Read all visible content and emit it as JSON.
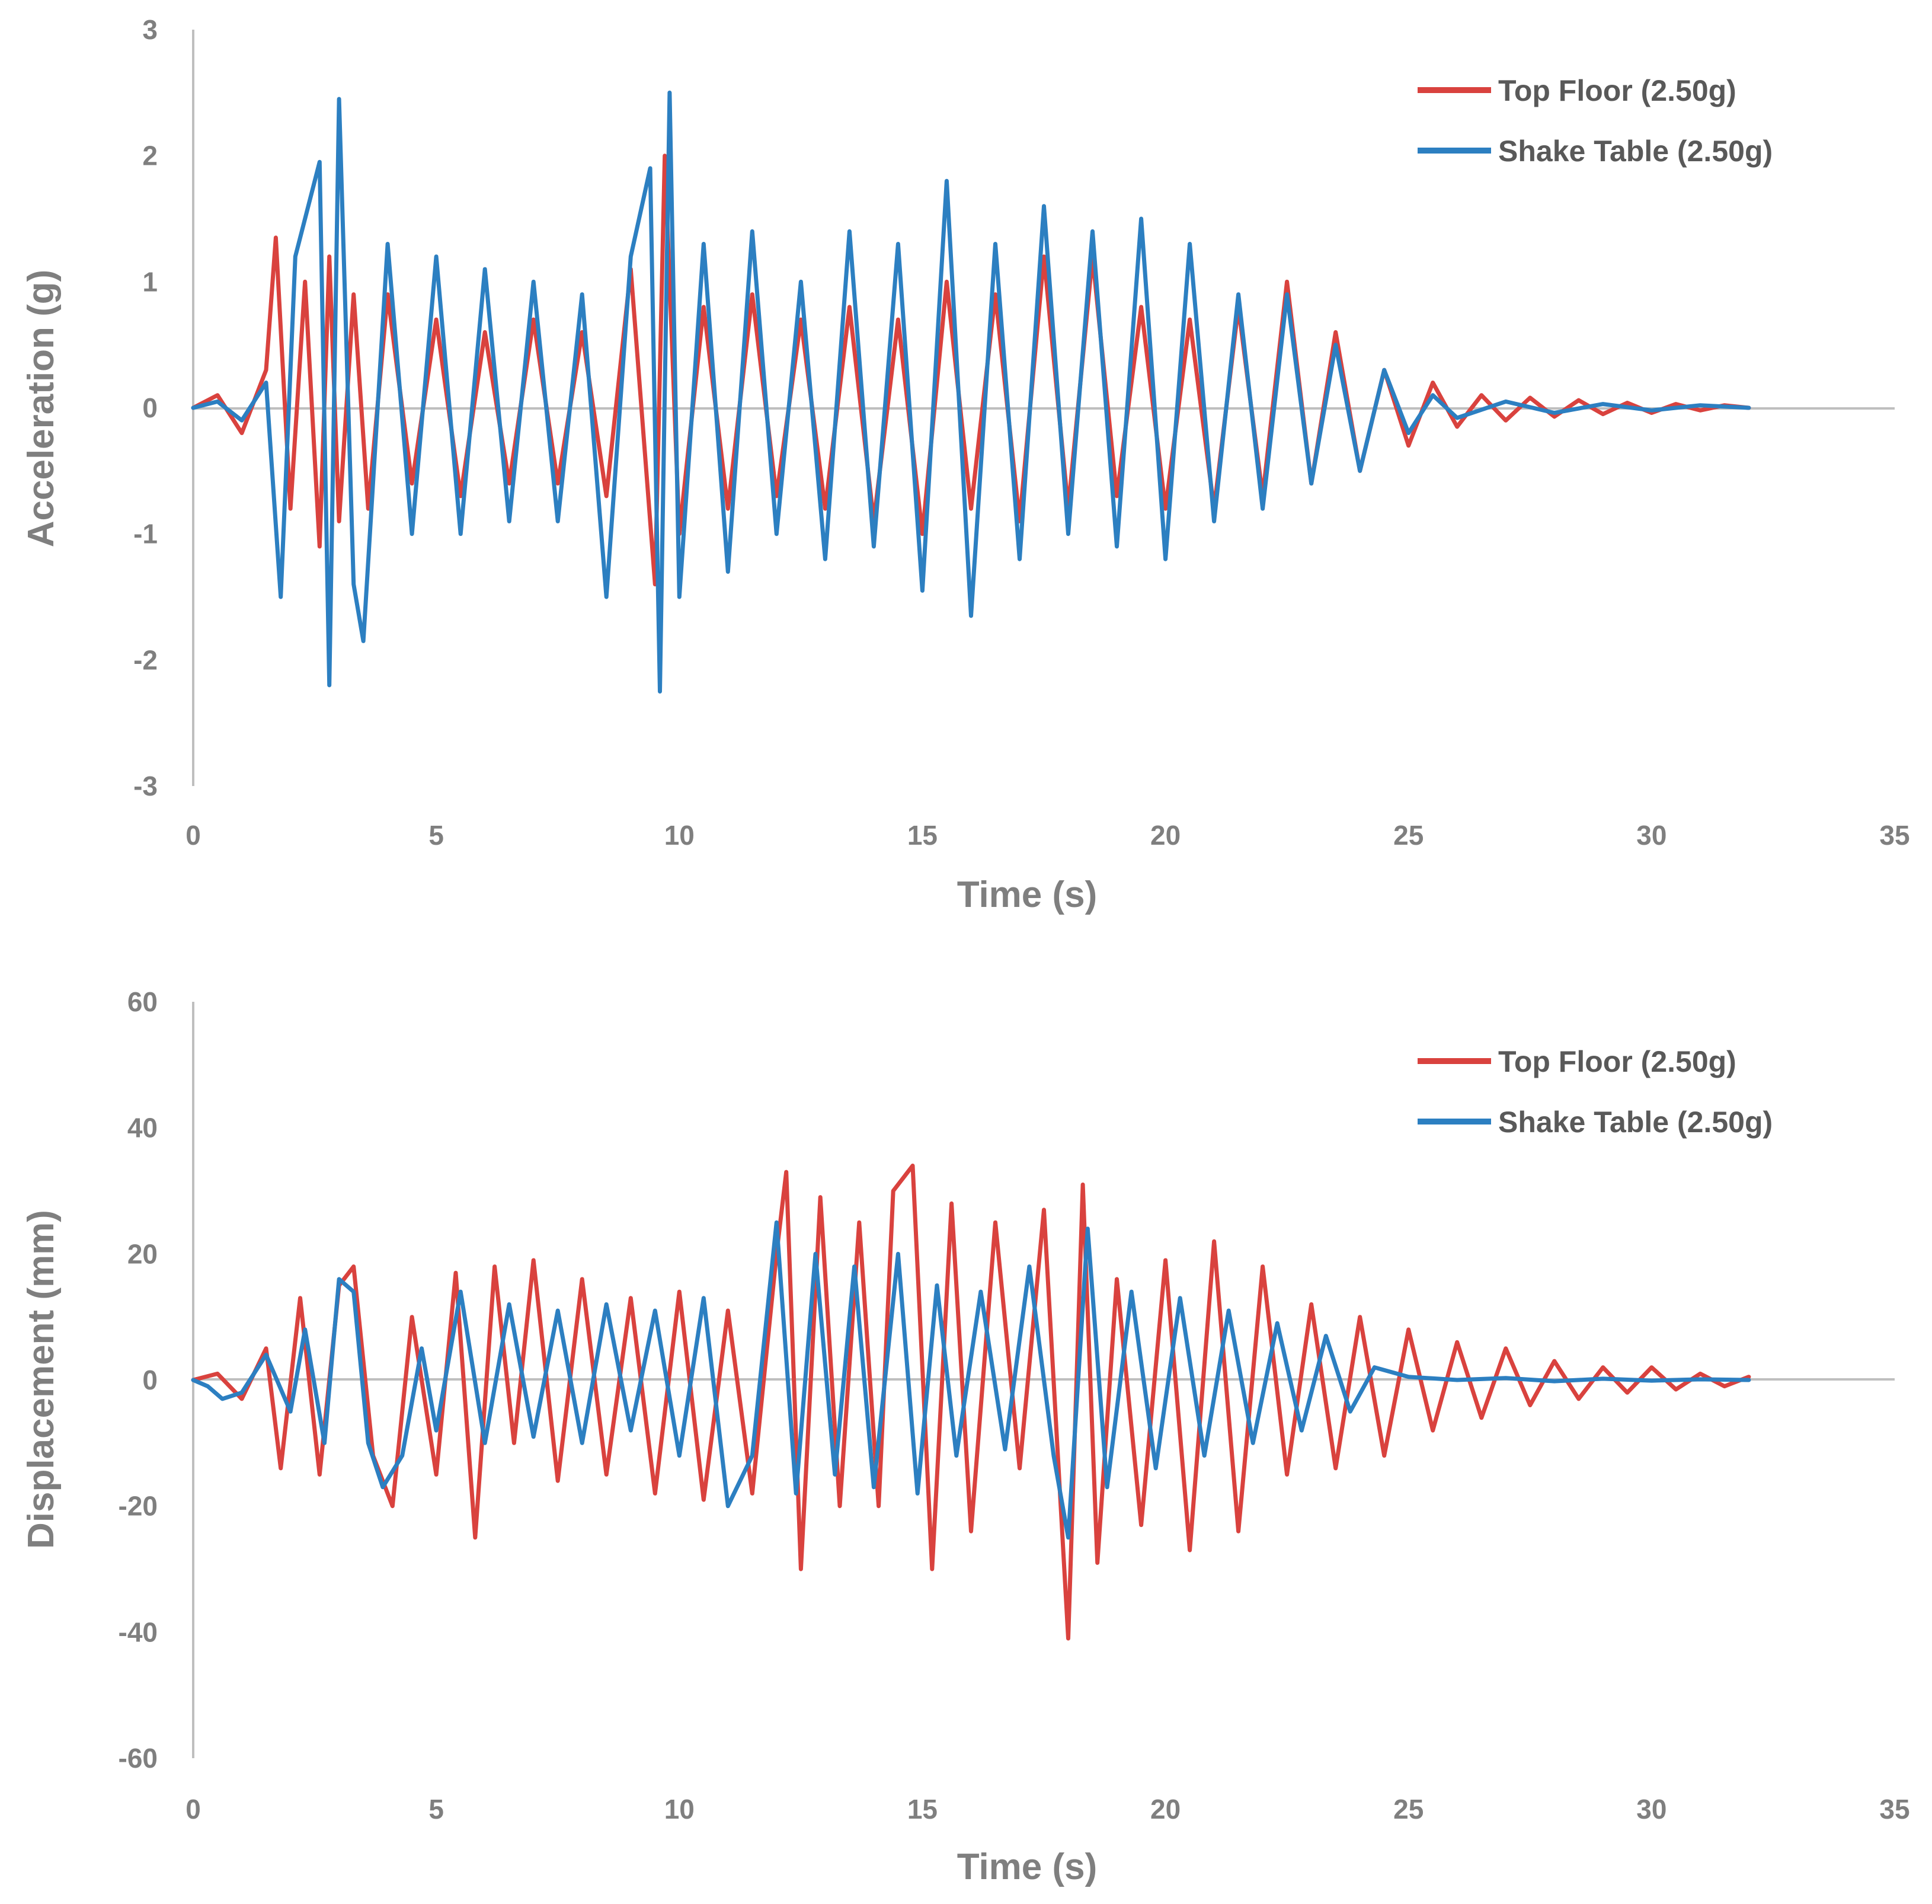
{
  "chart_data": [
    {
      "type": "line",
      "xlabel": "Time (s)",
      "ylabel": "Acceleration (g)",
      "xlim": [
        0,
        35
      ],
      "ylim": [
        -3,
        3
      ],
      "xticks": [
        0,
        5,
        10,
        15,
        20,
        25,
        30,
        35
      ],
      "yticks": [
        -3,
        -2,
        -1,
        0,
        1,
        2,
        3
      ],
      "grid": false,
      "legend_position": "top-right",
      "series": [
        {
          "name": "Top Floor (2.50g)",
          "color": "#d9423e",
          "x": [
            0,
            0.5,
            1,
            1.5,
            1.7,
            2,
            2.3,
            2.6,
            2.8,
            3,
            3.3,
            3.6,
            4,
            4.5,
            5,
            5.5,
            6,
            6.5,
            7,
            7.5,
            8,
            8.5,
            9,
            9.5,
            9.7,
            10,
            10.5,
            11,
            11.5,
            12,
            12.5,
            13,
            13.5,
            14,
            14.5,
            15,
            15.5,
            16,
            16.5,
            17,
            17.5,
            18,
            18.5,
            19,
            19.5,
            20,
            20.5,
            21,
            21.5,
            22,
            22.5,
            23,
            23.5,
            24,
            24.5,
            25,
            25.5,
            26,
            26.5,
            27,
            27.5,
            28,
            28.5,
            29,
            29.5,
            30,
            30.5,
            31,
            31.5,
            32
          ],
          "y": [
            0,
            0.1,
            -0.2,
            0.3,
            1.35,
            -0.8,
            1.0,
            -1.1,
            1.2,
            -0.9,
            0.9,
            -0.8,
            0.9,
            -0.6,
            0.7,
            -0.7,
            0.6,
            -0.6,
            0.7,
            -0.6,
            0.6,
            -0.7,
            1.1,
            -1.4,
            2.0,
            -1.0,
            0.8,
            -0.8,
            0.9,
            -0.7,
            0.7,
            -0.8,
            0.8,
            -0.9,
            0.7,
            -1.0,
            1.0,
            -0.8,
            0.9,
            -0.9,
            1.2,
            -0.8,
            1.2,
            -0.7,
            0.8,
            -0.8,
            0.7,
            -0.8,
            0.8,
            -0.7,
            1.0,
            -0.6,
            0.6,
            -0.5,
            0.3,
            -0.3,
            0.2,
            -0.15,
            0.1,
            -0.1,
            0.08,
            -0.07,
            0.06,
            -0.05,
            0.04,
            -0.04,
            0.03,
            -0.02,
            0.02,
            0
          ]
        },
        {
          "name": "Shake Table (2.50g)",
          "color": "#2c7fc1",
          "x": [
            0,
            0.5,
            1,
            1.5,
            1.8,
            2.1,
            2.6,
            2.8,
            3.0,
            3.3,
            3.5,
            4,
            4.5,
            5,
            5.5,
            6,
            6.5,
            7,
            7.5,
            8,
            8.5,
            9,
            9.4,
            9.6,
            9.8,
            10,
            10.5,
            11,
            11.5,
            12,
            12.5,
            13,
            13.5,
            14,
            14.5,
            15,
            15.5,
            16,
            16.5,
            17,
            17.5,
            18,
            18.5,
            19,
            19.5,
            20,
            20.5,
            21,
            21.5,
            22,
            22.5,
            23,
            23.5,
            24,
            24.5,
            25,
            25.5,
            26,
            27,
            28,
            29,
            30,
            31,
            32
          ],
          "y": [
            0,
            0.05,
            -0.1,
            0.2,
            -1.5,
            1.2,
            1.95,
            -2.2,
            2.45,
            -1.4,
            -1.85,
            1.3,
            -1.0,
            1.2,
            -1.0,
            1.1,
            -0.9,
            1.0,
            -0.9,
            0.9,
            -1.5,
            1.2,
            1.9,
            -2.25,
            2.5,
            -1.5,
            1.3,
            -1.3,
            1.4,
            -1.0,
            1.0,
            -1.2,
            1.4,
            -1.1,
            1.3,
            -1.45,
            1.8,
            -1.65,
            1.3,
            -1.2,
            1.6,
            -1.0,
            1.4,
            -1.1,
            1.5,
            -1.2,
            1.3,
            -0.9,
            0.9,
            -0.8,
            0.9,
            -0.6,
            0.5,
            -0.5,
            0.3,
            -0.2,
            0.1,
            -0.08,
            0.05,
            -0.04,
            0.03,
            -0.02,
            0.02,
            0
          ]
        }
      ]
    },
    {
      "type": "line",
      "xlabel": "Time (s)",
      "ylabel": "Displacement (mm)",
      "xlim": [
        0,
        35
      ],
      "ylim": [
        -60,
        60
      ],
      "xticks": [
        0,
        5,
        10,
        15,
        20,
        25,
        30,
        35
      ],
      "yticks": [
        -60,
        -40,
        -20,
        0,
        20,
        40,
        60
      ],
      "grid": false,
      "legend_position": "top-right",
      "series": [
        {
          "name": "Top Floor (2.50g)",
          "color": "#d9423e",
          "x": [
            0,
            0.5,
            1,
            1.5,
            1.8,
            2.2,
            2.6,
            3.0,
            3.3,
            3.7,
            4.1,
            4.5,
            5,
            5.4,
            5.8,
            6.2,
            6.6,
            7.0,
            7.5,
            8,
            8.5,
            9,
            9.5,
            10,
            10.5,
            11,
            11.5,
            12,
            12.2,
            12.5,
            12.9,
            13.3,
            13.7,
            14.1,
            14.4,
            14.8,
            15.2,
            15.6,
            16,
            16.5,
            17,
            17.5,
            18,
            18.3,
            18.6,
            19,
            19.5,
            20,
            20.5,
            21,
            21.5,
            22,
            22.5,
            23,
            23.5,
            24,
            24.5,
            25,
            25.5,
            26,
            26.5,
            27,
            27.5,
            28,
            28.5,
            29,
            29.5,
            30,
            30.5,
            31,
            31.5,
            32
          ],
          "y": [
            0,
            1,
            -3,
            5,
            -14,
            13,
            -15,
            15,
            18,
            -12,
            -20,
            10,
            -15,
            17,
            -25,
            18,
            -10,
            19,
            -16,
            16,
            -15,
            13,
            -18,
            14,
            -19,
            11,
            -18,
            20,
            33,
            -30,
            29,
            -20,
            25,
            -20,
            30,
            34,
            -30,
            28,
            -24,
            25,
            -14,
            27,
            -41,
            31,
            -29,
            16,
            -23,
            19,
            -27,
            22,
            -24,
            18,
            -15,
            12,
            -14,
            10,
            -12,
            8,
            -8,
            6,
            -6,
            5,
            -4,
            3,
            -3,
            2,
            -2,
            2,
            -1.5,
            1,
            -1,
            0.5
          ]
        },
        {
          "name": "Shake Table (2.50g)",
          "color": "#2c7fc1",
          "x": [
            0,
            0.3,
            0.6,
            1,
            1.5,
            2,
            2.3,
            2.7,
            3.0,
            3.3,
            3.6,
            3.9,
            4.3,
            4.7,
            5,
            5.5,
            6,
            6.5,
            7,
            7.5,
            8,
            8.5,
            9,
            9.5,
            10,
            10.5,
            11,
            11.5,
            12,
            12.4,
            12.8,
            13.2,
            13.6,
            14,
            14.5,
            14.9,
            15.3,
            15.7,
            16.2,
            16.7,
            17.2,
            17.7,
            18.0,
            18.4,
            18.8,
            19.3,
            19.8,
            20.3,
            20.8,
            21.3,
            21.8,
            22.3,
            22.8,
            23.3,
            23.8,
            24.3,
            25,
            26,
            27,
            28,
            29,
            30,
            31,
            32
          ],
          "y": [
            0,
            -1,
            -3,
            -2,
            4,
            -5,
            8,
            -10,
            16,
            14,
            -10,
            -17,
            -12,
            5,
            -8,
            14,
            -10,
            12,
            -9,
            11,
            -10,
            12,
            -8,
            11,
            -12,
            13,
            -20,
            -12,
            25,
            -18,
            20,
            -15,
            18,
            -17,
            20,
            -18,
            15,
            -12,
            14,
            -11,
            18,
            -12,
            -25,
            24,
            -17,
            14,
            -14,
            13,
            -12,
            11,
            -10,
            9,
            -8,
            7,
            -5,
            2,
            0.5,
            0,
            0.3,
            -0.2,
            0.2,
            -0.1,
            0.1,
            0
          ]
        }
      ]
    }
  ]
}
